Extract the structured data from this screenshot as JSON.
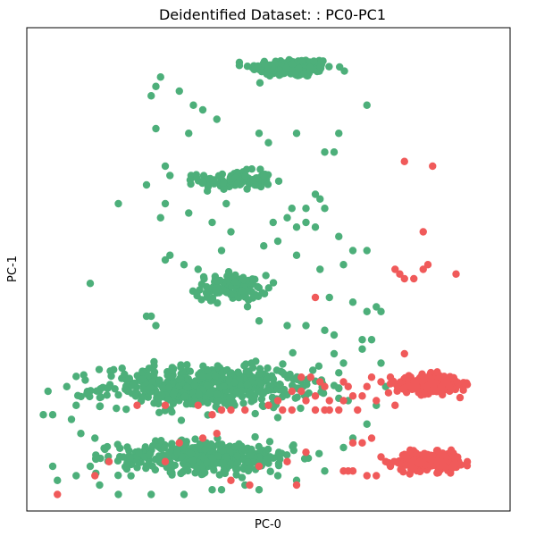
{
  "chart_data": {
    "type": "scatter",
    "title": "Deidentified Dataset: : PC0-PC1",
    "xlabel": "PC-0",
    "ylabel": "PC-1",
    "xticks": [],
    "yticks": [],
    "xlim": [
      0,
      100
    ],
    "ylim": [
      0,
      100
    ],
    "grid": false,
    "legend": false,
    "colors": {
      "green": "#4daf7a",
      "red": "#f05a5a"
    },
    "series": [
      {
        "color": "green",
        "clusters": [
          {
            "cx": 55,
            "cy": 93,
            "sx": 8,
            "sy": 1.8,
            "n": 180
          },
          {
            "cx": 43,
            "cy": 69,
            "sx": 7,
            "sy": 1.8,
            "n": 110
          },
          {
            "cx": 42,
            "cy": 46,
            "sx": 7,
            "sy": 2.5,
            "n": 110
          },
          {
            "cx": 37,
            "cy": 25,
            "sx": 20,
            "sy": 4,
            "n": 520
          },
          {
            "cx": 37,
            "cy": 10,
            "sx": 17,
            "sy": 3,
            "n": 420
          }
        ],
        "points": [
          [
            27,
            91
          ],
          [
            26,
            89
          ],
          [
            25,
            87
          ],
          [
            31,
            88
          ],
          [
            34,
            85
          ],
          [
            36,
            84
          ],
          [
            39,
            82
          ],
          [
            48,
            79
          ],
          [
            50,
            77
          ],
          [
            56,
            79
          ],
          [
            65,
            79
          ],
          [
            71,
            85
          ],
          [
            64,
            75
          ],
          [
            62,
            75
          ],
          [
            26,
            80
          ],
          [
            33,
            79
          ],
          [
            28,
            72
          ],
          [
            29,
            70
          ],
          [
            24,
            68
          ],
          [
            18,
            64
          ],
          [
            28,
            64
          ],
          [
            27,
            61
          ],
          [
            33,
            62
          ],
          [
            38,
            60
          ],
          [
            41,
            64
          ],
          [
            42,
            58
          ],
          [
            58,
            60
          ],
          [
            60,
            59
          ],
          [
            65,
            57
          ],
          [
            68,
            54
          ],
          [
            71,
            54
          ],
          [
            29,
            53
          ],
          [
            28,
            52
          ],
          [
            32,
            51
          ],
          [
            35,
            50
          ],
          [
            40,
            54
          ],
          [
            49,
            55
          ],
          [
            52,
            56
          ],
          [
            56,
            53
          ],
          [
            61,
            50
          ],
          [
            66,
            51
          ],
          [
            63,
            44
          ],
          [
            68,
            43
          ],
          [
            71,
            41
          ],
          [
            12,
            47
          ],
          [
            25,
            40
          ],
          [
            26,
            38
          ],
          [
            24,
            40
          ],
          [
            48,
            39
          ],
          [
            54,
            38
          ],
          [
            58,
            38
          ],
          [
            62,
            37
          ],
          [
            64,
            36
          ],
          [
            70,
            35
          ],
          [
            72,
            35
          ],
          [
            3,
            24
          ],
          [
            2,
            19
          ],
          [
            4,
            19
          ],
          [
            8,
            18
          ],
          [
            7,
            25
          ],
          [
            9,
            21
          ],
          [
            10,
            15
          ],
          [
            13,
            14
          ],
          [
            4,
            8
          ],
          [
            5,
            5
          ],
          [
            9,
            6
          ],
          [
            12,
            8
          ],
          [
            14,
            4
          ],
          [
            18,
            2
          ],
          [
            25,
            2
          ],
          [
            32,
            2
          ],
          [
            40,
            3
          ],
          [
            48,
            3
          ],
          [
            56,
            5
          ],
          [
            62,
            7
          ],
          [
            66,
            12
          ],
          [
            68,
            14
          ],
          [
            71,
            17
          ],
          [
            73,
            21
          ],
          [
            75,
            25
          ],
          [
            74,
            30
          ],
          [
            70,
            33
          ],
          [
            67,
            22
          ],
          [
            66,
            30
          ],
          [
            64,
            32
          ],
          [
            38,
            3
          ],
          [
            45,
            4
          ],
          [
            52,
            6
          ],
          [
            73,
            42
          ],
          [
            74,
            41
          ],
          [
            58,
            63
          ],
          [
            55,
            63
          ],
          [
            54,
            61
          ],
          [
            51,
            60
          ],
          [
            60,
            66
          ],
          [
            61,
            65
          ],
          [
            62,
            63
          ],
          [
            56,
            59
          ]
        ]
      },
      {
        "color": "red",
        "clusters": [
          {
            "cx": 84,
            "cy": 25.5,
            "sx": 6,
            "sy": 1.8,
            "n": 200
          },
          {
            "cx": 84,
            "cy": 9,
            "sx": 6,
            "sy": 1.8,
            "n": 210
          }
        ],
        "points": [
          [
            79,
            73
          ],
          [
            85,
            72
          ],
          [
            83,
            58
          ],
          [
            84,
            51
          ],
          [
            77,
            50
          ],
          [
            78,
            49
          ],
          [
            79,
            48
          ],
          [
            81,
            48
          ],
          [
            83,
            50
          ],
          [
            90,
            49
          ],
          [
            60,
            44
          ],
          [
            79,
            32
          ],
          [
            57,
            27
          ],
          [
            59,
            27
          ],
          [
            61,
            26
          ],
          [
            62,
            25
          ],
          [
            60,
            23
          ],
          [
            58,
            22
          ],
          [
            63,
            22
          ],
          [
            66,
            22
          ],
          [
            68,
            23
          ],
          [
            70,
            23
          ],
          [
            73,
            22
          ],
          [
            71,
            25
          ],
          [
            72,
            27
          ],
          [
            74,
            26
          ],
          [
            76,
            27
          ],
          [
            66,
            26
          ],
          [
            67,
            25
          ],
          [
            22,
            21
          ],
          [
            28,
            21
          ],
          [
            35,
            21
          ],
          [
            38,
            19
          ],
          [
            42,
            20
          ],
          [
            53,
            20
          ],
          [
            55,
            20
          ],
          [
            60,
            20
          ],
          [
            62,
            20
          ],
          [
            63,
            20
          ],
          [
            65,
            20
          ],
          [
            69,
            20
          ],
          [
            77,
            21
          ],
          [
            39,
            15
          ],
          [
            68,
            13
          ],
          [
            70,
            13
          ],
          [
            72,
            14
          ],
          [
            74,
            10
          ],
          [
            75,
            9
          ],
          [
            76,
            8
          ],
          [
            66,
            7
          ],
          [
            67,
            7
          ],
          [
            68,
            7
          ],
          [
            71,
            6
          ],
          [
            73,
            6
          ],
          [
            58,
            11
          ],
          [
            54,
            9
          ],
          [
            48,
            8
          ],
          [
            42,
            5
          ],
          [
            46,
            4
          ],
          [
            56,
            4
          ],
          [
            5,
            2
          ],
          [
            13,
            6
          ],
          [
            16,
            9
          ],
          [
            28,
            9
          ],
          [
            31,
            13
          ],
          [
            36,
            14
          ],
          [
            40,
            20
          ],
          [
            45,
            20
          ],
          [
            50,
            21
          ],
          [
            52,
            22
          ],
          [
            55,
            24
          ],
          [
            57,
            24
          ]
        ]
      }
    ]
  }
}
